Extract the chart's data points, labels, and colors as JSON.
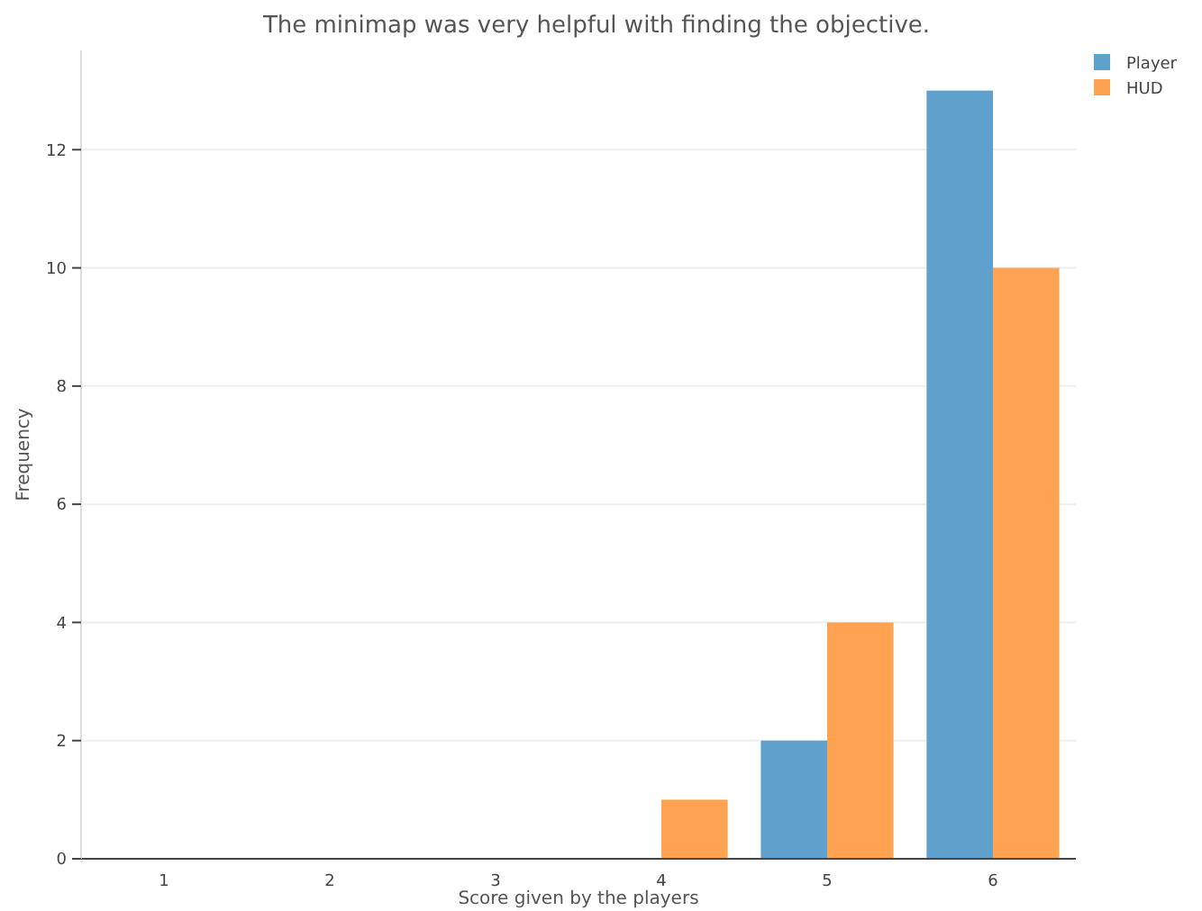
{
  "chart_data": {
    "type": "bar",
    "title": "The minimap was very helpful with finding the objective.",
    "xlabel": "Score given by the players",
    "ylabel": "Frequency",
    "categories": [
      "1",
      "2",
      "3",
      "4",
      "5",
      "6"
    ],
    "series": [
      {
        "name": "Player",
        "color": "#5fa0cc",
        "values": [
          0,
          0,
          0,
          0,
          2,
          13
        ]
      },
      {
        "name": "HUD",
        "color": "#ffa252",
        "values": [
          0,
          0,
          0,
          1,
          4,
          10
        ]
      }
    ],
    "ylim": [
      0,
      13.68
    ],
    "yticks": [
      0,
      2,
      4,
      6,
      8,
      10,
      12
    ],
    "grid": "y",
    "legend": "top right"
  }
}
